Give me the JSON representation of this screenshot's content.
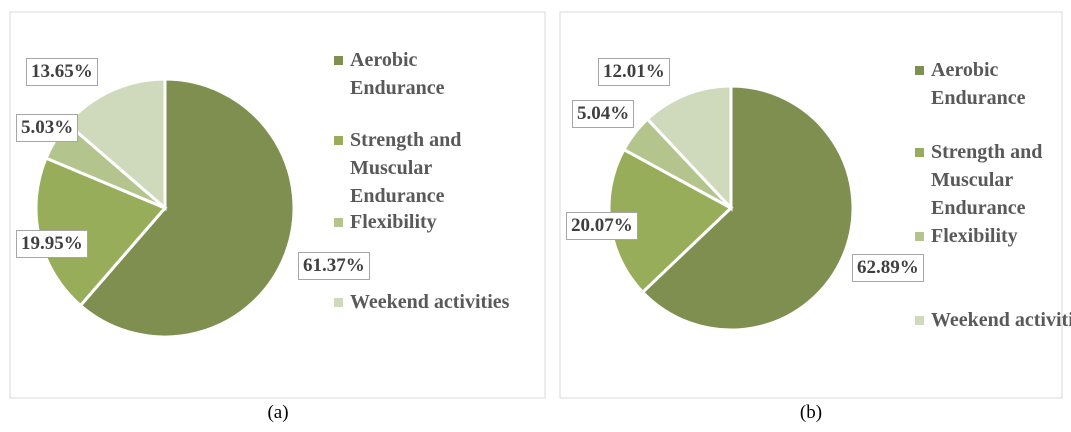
{
  "chart_data": [
    {
      "type": "pie",
      "caption": "(a)",
      "categories": [
        "Aerobic Endurance",
        "Strength and Muscular Endurance",
        "Flexibility",
        "Weekend activities"
      ],
      "values": [
        61.37,
        19.95,
        5.03,
        13.65
      ],
      "value_labels": [
        "61.37%",
        "19.95%",
        "5.03%",
        "13.65%"
      ],
      "colors": [
        "#7f8f4f",
        "#98ad5a",
        "#b3c58c",
        "#cfdabd"
      ]
    },
    {
      "type": "pie",
      "caption": "(b)",
      "categories": [
        "Aerobic Endurance",
        "Strength and Muscular Endurance",
        "Flexibility",
        "Weekend activities"
      ],
      "values": [
        62.89,
        20.07,
        5.04,
        12.01
      ],
      "value_labels": [
        "62.89%",
        "20.07%",
        "5.04%",
        "12.01%"
      ],
      "colors": [
        "#7f8f4f",
        "#98ad5a",
        "#b3c58c",
        "#cfdabd"
      ]
    }
  ]
}
